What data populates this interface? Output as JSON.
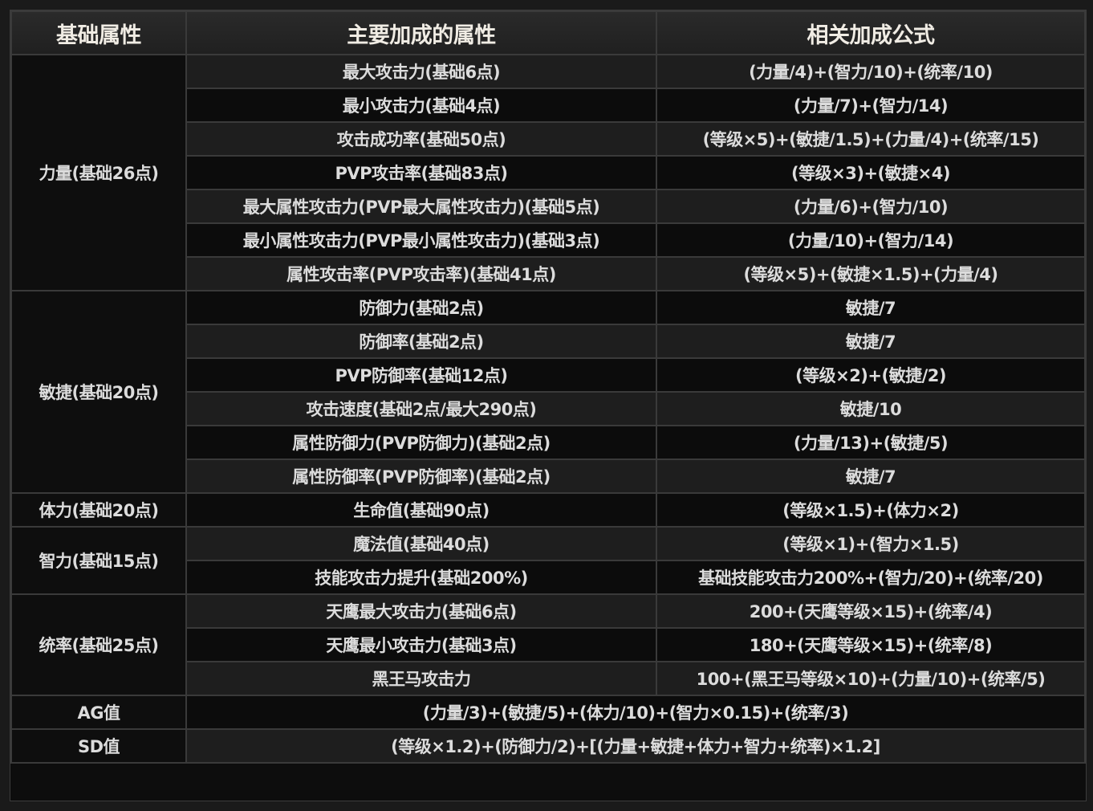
{
  "headers": [
    "基础属性",
    "主要加成的属性",
    "相关加成公式"
  ],
  "groups": [
    {
      "base": "力量(基础26点)",
      "rows": [
        [
          "最大攻击力(基础6点)",
          "(力量/4)+(智力/10)+(统率/10)"
        ],
        [
          "最小攻击力(基础4点)",
          "(力量/7)+(智力/14)"
        ],
        [
          "攻击成功率(基础50点)",
          "(等级×5)+(敏捷/1.5)+(力量/4)+(统率/15)"
        ],
        [
          "PVP攻击率(基础83点)",
          "(等级×3)+(敏捷×4)"
        ],
        [
          "最大属性攻击力(PVP最大属性攻击力)(基础5点)",
          "(力量/6)+(智力/10)"
        ],
        [
          "最小属性攻击力(PVP最小属性攻击力)(基础3点)",
          "(力量/10)+(智力/14)"
        ],
        [
          "属性攻击率(PVP攻击率)(基础41点)",
          "(等级×5)+(敏捷×1.5)+(力量/4)"
        ]
      ]
    },
    {
      "base": "敏捷(基础20点)",
      "rows": [
        [
          "防御力(基础2点)",
          "敏捷/7"
        ],
        [
          "防御率(基础2点)",
          "敏捷/7"
        ],
        [
          "PVP防御率(基础12点)",
          "(等级×2)+(敏捷/2)"
        ],
        [
          "攻击速度(基础2点/最大290点)",
          "敏捷/10"
        ],
        [
          "属性防御力(PVP防御力)(基础2点)",
          "(力量/13)+(敏捷/5)"
        ],
        [
          "属性防御率(PVP防御率)(基础2点)",
          "敏捷/7"
        ]
      ]
    },
    {
      "base": "体力(基础20点)",
      "rows": [
        [
          "生命值(基础90点)",
          "(等级×1.5)+(体力×2)"
        ]
      ]
    },
    {
      "base": "智力(基础15点)",
      "rows": [
        [
          "魔法值(基础40点)",
          "(等级×1)+(智力×1.5)"
        ],
        [
          "技能攻击力提升(基础200%)",
          "基础技能攻击力200%+(智力/20)+(统率/20)"
        ]
      ]
    },
    {
      "base": "统率(基础25点)",
      "rows": [
        [
          "天鹰最大攻击力(基础6点)",
          "200+(天鹰等级×15)+(统率/4)"
        ],
        [
          "天鹰最小攻击力(基础3点)",
          "180+(天鹰等级×15)+(统率/8)"
        ],
        [
          "黑王马攻击力",
          "100+(黑王马等级×10)+(力量/10)+(统率/5)"
        ]
      ]
    },
    {
      "base": "AG值",
      "rows": [
        [
          "(力量/3)+(敏捷/5)+(体力/10)+(智力×0.15)+(统率/3)"
        ]
      ]
    },
    {
      "base": "SD值",
      "rows": [
        [
          "(等级×1.2)+(防御力/2)+[(力量+敏捷+体力+智力+统率)×1.2]"
        ]
      ]
    }
  ]
}
